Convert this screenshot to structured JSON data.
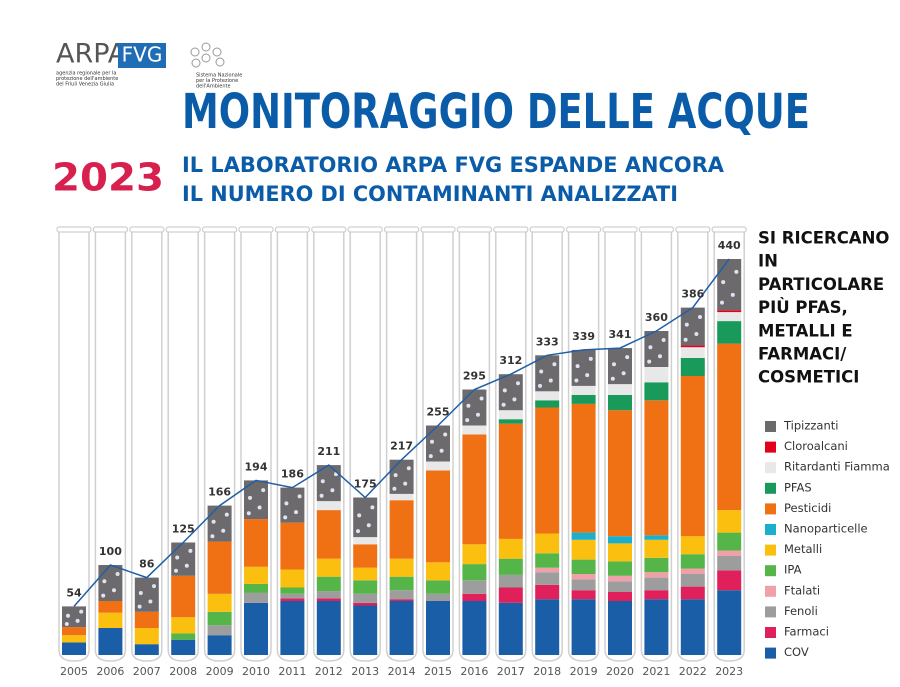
{
  "header": {
    "logo": "ARPA",
    "logo_box": "FVG",
    "logo_caption": [
      "agenzia regionale per la",
      "protezione dell'ambiente",
      "del Friuli Venezia Giulia"
    ],
    "partner_caption": [
      "Sistema Nazionale",
      "per la Protezione",
      "dell'Ambiente"
    ],
    "title": "MONITORAGGIO DELLE ACQUE",
    "year": "2023",
    "subtitle": [
      "IL LABORATORIO ARPA FVG ESPANDE ANCORA",
      "IL NUMERO DI CONTAMINANTI ANALIZZATI"
    ]
  },
  "chart_data": {
    "type": "stacked_bar",
    "categories": [
      "2005",
      "2006",
      "2007",
      "2008",
      "2009",
      "2010",
      "2011",
      "2012",
      "2013",
      "2014",
      "2015",
      "2016",
      "2017",
      "2018",
      "2019",
      "2020",
      "2021",
      "2022",
      "2023"
    ],
    "totals": [
      54,
      100,
      86,
      125,
      166,
      194,
      186,
      211,
      175,
      217,
      255,
      295,
      312,
      333,
      339,
      341,
      360,
      386,
      440
    ],
    "side_note": [
      "SI RICERCANO",
      "IN",
      "PARTICOLARE",
      "PIÙ PFAS,",
      "METALLI E",
      "FARMACI/",
      "COSMETICI"
    ],
    "series": [
      {
        "name": "COV",
        "color": "#1b5ea8",
        "values": [
          14,
          30,
          12,
          17,
          22,
          58,
          60,
          60,
          55,
          60,
          60,
          60,
          58,
          62,
          62,
          60,
          62,
          62,
          72
        ]
      },
      {
        "name": "Farmaci",
        "color": "#e0205a",
        "values": [
          0,
          0,
          0,
          0,
          0,
          0,
          3,
          3,
          3,
          2,
          0,
          8,
          17,
          16,
          10,
          10,
          10,
          14,
          22
        ]
      },
      {
        "name": "Fenoli",
        "color": "#9d9d9d",
        "values": [
          0,
          0,
          0,
          0,
          11,
          11,
          5,
          8,
          10,
          10,
          8,
          15,
          14,
          14,
          12,
          12,
          14,
          14,
          16
        ]
      },
      {
        "name": "Ftalati",
        "color": "#f0a0a8",
        "values": [
          0,
          0,
          0,
          0,
          0,
          0,
          0,
          0,
          0,
          0,
          0,
          0,
          0,
          5,
          6,
          6,
          6,
          6,
          6
        ]
      },
      {
        "name": "IPA",
        "color": "#55b548",
        "values": [
          0,
          0,
          0,
          7,
          15,
          10,
          7,
          16,
          15,
          15,
          15,
          18,
          18,
          16,
          16,
          16,
          16,
          16,
          20
        ]
      },
      {
        "name": "Metalli",
        "color": "#fbbf0f",
        "values": [
          8,
          17,
          18,
          18,
          20,
          19,
          20,
          20,
          14,
          20,
          20,
          22,
          22,
          22,
          22,
          20,
          20,
          20,
          25
        ]
      },
      {
        "name": "Nanoparticelle",
        "color": "#1ab0cc",
        "values": [
          0,
          0,
          0,
          0,
          0,
          0,
          0,
          0,
          0,
          0,
          0,
          0,
          0,
          0,
          8,
          8,
          5,
          0,
          0
        ]
      },
      {
        "name": "Pesticidi",
        "color": "#f07014",
        "values": [
          9,
          13,
          18,
          46,
          58,
          53,
          52,
          54,
          26,
          65,
          102,
          122,
          128,
          140,
          143,
          140,
          150,
          178,
          185
        ]
      },
      {
        "name": "PFAS",
        "color": "#1a9a5a",
        "values": [
          0,
          0,
          0,
          0,
          0,
          0,
          0,
          0,
          0,
          0,
          0,
          0,
          5,
          8,
          10,
          17,
          20,
          20,
          25
        ]
      },
      {
        "name": "Ritardanti Fiamma",
        "color": "#e8e8e8",
        "values": [
          0,
          0,
          0,
          0,
          0,
          0,
          0,
          10,
          8,
          7,
          10,
          10,
          10,
          10,
          10,
          12,
          17,
          12,
          10
        ]
      },
      {
        "name": "Cloroalcani",
        "color": "#e3001b",
        "values": [
          0,
          0,
          0,
          0,
          0,
          0,
          0,
          0,
          0,
          0,
          0,
          0,
          0,
          0,
          0,
          0,
          0,
          2,
          2
        ]
      },
      {
        "name": "Tipizzanti",
        "color": "#6d6a6e",
        "values": [
          23,
          40,
          38,
          37,
          40,
          43,
          39,
          40,
          44,
          38,
          40,
          40,
          40,
          40,
          40,
          40,
          40,
          42,
          57
        ]
      }
    ]
  }
}
